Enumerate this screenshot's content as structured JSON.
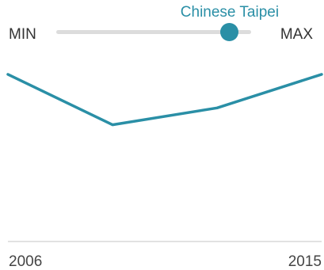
{
  "slider": {
    "selected_label": "Chinese Taipei",
    "min_label": "MIN",
    "max_label": "MAX",
    "position": 0.89
  },
  "colors": {
    "accent": "#2a8fa6",
    "track": "#dcdcdc",
    "axis": "#d8d8d8",
    "text": "#333333"
  },
  "chart_data": {
    "type": "line",
    "title": "",
    "xlabel": "",
    "ylabel": "",
    "x": [
      2006,
      2009,
      2012,
      2015
    ],
    "series": [
      {
        "values": [
          0.69,
          0.48,
          0.55,
          0.69
        ]
      }
    ],
    "xlim": [
      2006,
      2015
    ],
    "ylim": [
      0,
      1
    ],
    "x_tick_labels": [
      "2006",
      "2015"
    ],
    "grid": false,
    "legend": "none"
  }
}
